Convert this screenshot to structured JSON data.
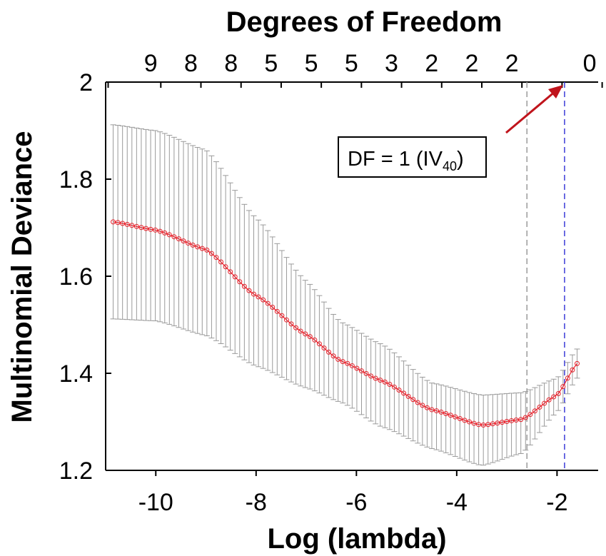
{
  "chart_data": {
    "type": "line",
    "title": "Degrees of Freedom",
    "xlabel": "Log (lambda)",
    "ylabel": "Multinomial Deviance",
    "xlim": [
      -11.0,
      -1.18
    ],
    "ylim": [
      1.2,
      2.0
    ],
    "x_ticks": [
      -10,
      -8,
      -6,
      -4,
      -2
    ],
    "x_tick_labels": [
      "-10",
      "-8",
      "-6",
      "-4",
      "-2"
    ],
    "y_ticks": [
      1.2,
      1.4,
      1.6,
      1.8,
      2.0
    ],
    "y_tick_labels": [
      "1.2",
      "1.4",
      "1.6",
      "1.8",
      "2"
    ],
    "top_axis": {
      "tick_x": [
        -10.95,
        -9.9,
        -9.1,
        -8.3,
        -7.5,
        -6.7,
        -5.9,
        -5.1,
        -4.3,
        -3.5,
        -2.7,
        -1.9,
        -1.1
      ],
      "labels": [
        "9",
        "8",
        "8",
        "5",
        "5",
        "5",
        "3",
        "2",
        "2",
        "2",
        "0"
      ],
      "label_x": [
        -10.1,
        -9.3,
        -8.5,
        -7.7,
        -6.9,
        -6.1,
        -5.3,
        -4.5,
        -3.7,
        -2.9,
        -1.35
      ]
    },
    "series": [
      {
        "color": "#e8202a",
        "error_bar_color": "#9a9a9a",
        "x_start": -10.85,
        "x_end": -1.6,
        "knots": [
          [
            -10.85,
            1.712,
            1.912,
            1.512
          ],
          [
            -10.0,
            1.695,
            1.9,
            1.508
          ],
          [
            -9.0,
            1.655,
            1.86,
            1.478
          ],
          [
            -8.0,
            1.56,
            1.72,
            1.415
          ],
          [
            -7.0,
            1.48,
            1.59,
            1.37
          ],
          [
            -6.3,
            1.425,
            1.505,
            1.34
          ],
          [
            -5.5,
            1.385,
            1.46,
            1.29
          ],
          [
            -4.5,
            1.325,
            1.38,
            1.245
          ],
          [
            -3.5,
            1.293,
            1.355,
            1.21
          ],
          [
            -2.7,
            1.305,
            1.36,
            1.235
          ],
          [
            -2.0,
            1.355,
            1.39,
            1.32
          ],
          [
            -1.6,
            1.42,
            1.45,
            1.39
          ]
        ]
      }
    ],
    "vlines": [
      {
        "x": -2.6,
        "color": "#9a9a9a",
        "style": "dashed"
      },
      {
        "x": -1.85,
        "color": "#3b3bd8",
        "style": "dashed"
      }
    ],
    "annotation": {
      "text": "DF = 1 (IV",
      "subscript": "40",
      "suffix": ")",
      "arrow_color": "#c0141c",
      "arrow_to": [
        -1.85,
        2.0
      ]
    },
    "grid": false,
    "legend": "none"
  }
}
